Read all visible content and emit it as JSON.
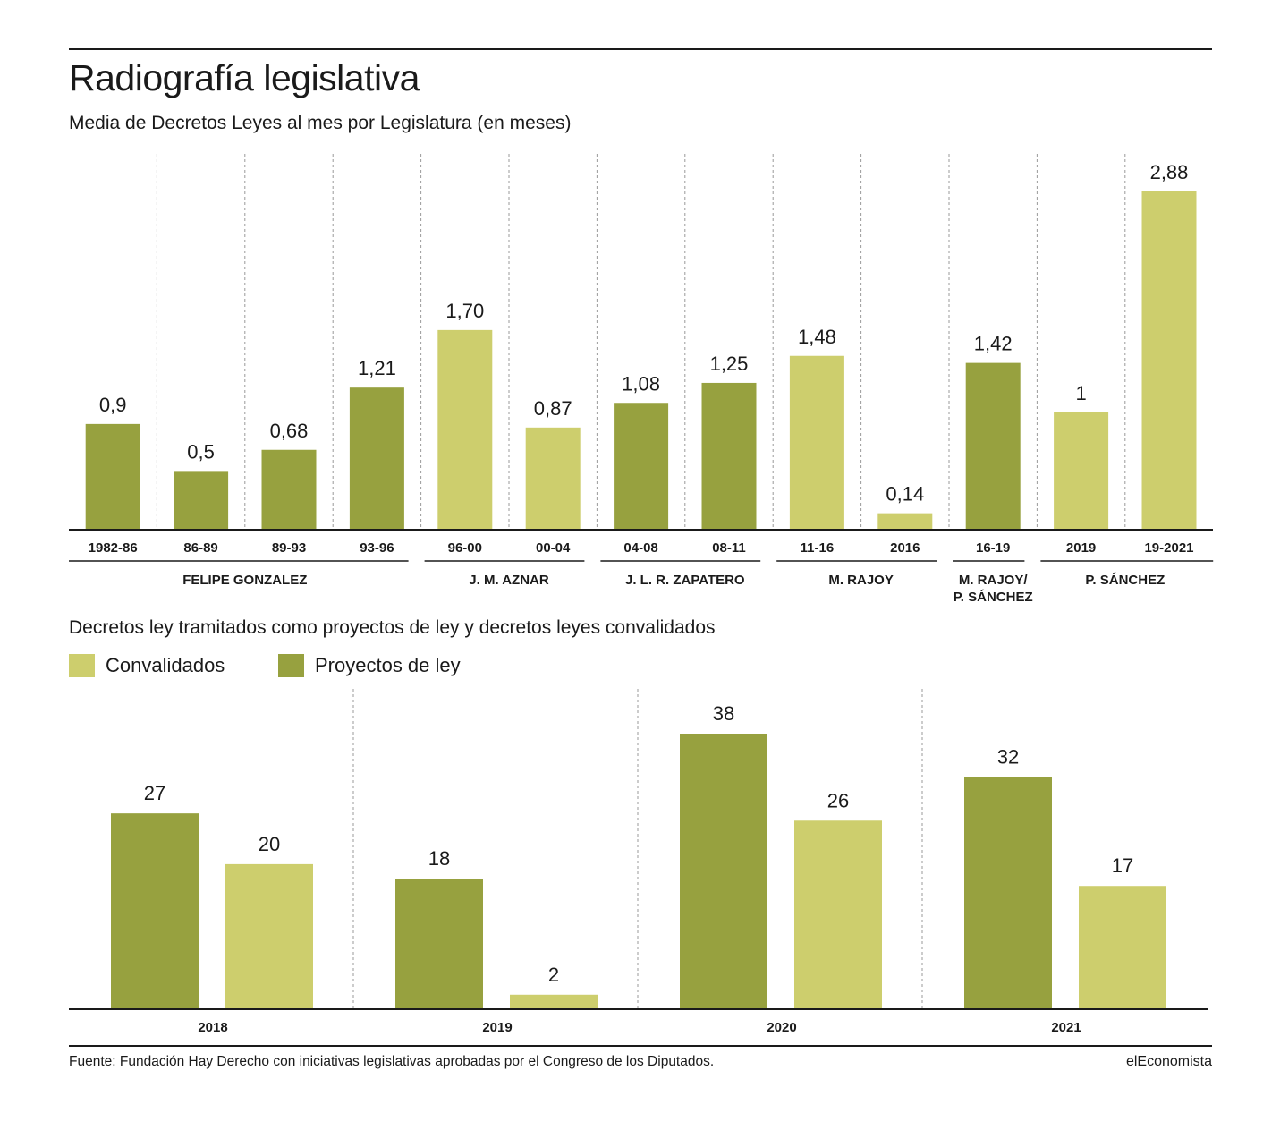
{
  "title": "Radiografía legislativa",
  "footer": {
    "source": "Fuente: Fundación Hay Derecho con iniciativas legislativas aprobadas por el Congreso de los Diputados.",
    "brand": "elEconomista"
  },
  "colors": {
    "dark_green": "#97a13f",
    "light_green": "#cdce6d"
  },
  "chart_data": [
    {
      "type": "bar",
      "title": "Media de Decretos Leyes al mes por Legislatura (en meses)",
      "categories": [
        "1982-86",
        "86-89",
        "89-93",
        "93-96",
        "96-00",
        "00-04",
        "04-08",
        "08-11",
        "11-16",
        "2016",
        "16-19",
        "2019",
        "19-2021"
      ],
      "values": [
        0.9,
        0.5,
        0.68,
        1.21,
        1.7,
        0.87,
        1.08,
        1.25,
        1.48,
        0.14,
        1.42,
        1,
        2.88
      ],
      "value_labels": [
        "0,9",
        "0,5",
        "0,68",
        "1,21",
        "1,70",
        "0,87",
        "1,08",
        "1,25",
        "1,48",
        "0,14",
        "1,42",
        "1",
        "2,88"
      ],
      "bar_colors": [
        "dark",
        "dark",
        "dark",
        "dark",
        "light",
        "light",
        "dark",
        "dark",
        "light",
        "light",
        "dark",
        "light",
        "light"
      ],
      "groups": [
        {
          "label": "FELIPE GONZALEZ",
          "start": 0,
          "end": 3
        },
        {
          "label": "J. M. AZNAR",
          "start": 4,
          "end": 5
        },
        {
          "label": "J. L. R. ZAPATERO",
          "start": 6,
          "end": 7
        },
        {
          "label": "M. RAJOY",
          "start": 8,
          "end": 9
        },
        {
          "label": "M. RAJOY/\nP. SÁNCHEZ",
          "start": 10,
          "end": 10
        },
        {
          "label": "P. SÁNCHEZ",
          "start": 11,
          "end": 12
        }
      ],
      "ylim": [
        0,
        2.88
      ],
      "grid": false
    },
    {
      "type": "bar",
      "title": "Decretos ley tramitados como proyectos de ley y decretos leyes convalidados",
      "categories": [
        "2018",
        "2019",
        "2020",
        "2021"
      ],
      "series": [
        {
          "name": "Proyectos de ley",
          "color": "#97a13f",
          "values": [
            27,
            18,
            38,
            32
          ]
        },
        {
          "name": "Convalidados",
          "color": "#cdce6d",
          "values": [
            20,
            2,
            26,
            17
          ]
        }
      ],
      "legend": [
        {
          "name": "Convalidados",
          "color": "#cdce6d"
        },
        {
          "name": "Proyectos de ley",
          "color": "#97a13f"
        }
      ],
      "legend_position": "top-left",
      "ylim": [
        0,
        38
      ],
      "grid": false
    }
  ]
}
